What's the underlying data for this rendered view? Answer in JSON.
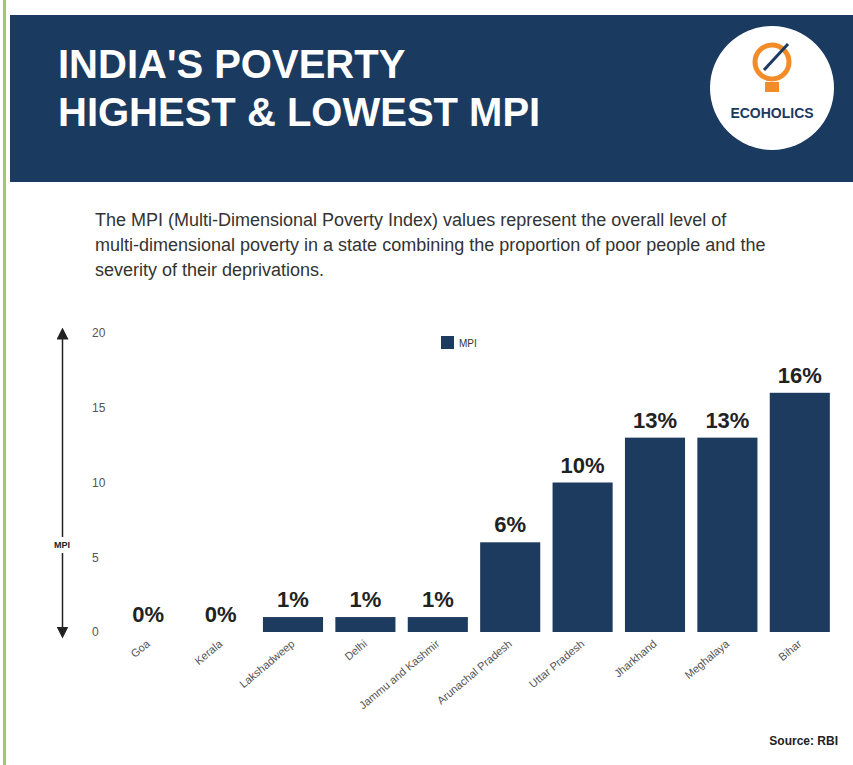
{
  "chart_data": {
    "type": "bar",
    "title": "INDIA'S POVERTY\nHIGHEST & LOWEST MPI",
    "subtitle": "The MPI (Multi-Dimensional Poverty Index) values represent the overall level of multi-dimensional poverty in a state combining the proportion of poor people and the severity of their deprivations.",
    "brand": "ECOHOLICS",
    "source": "Source: RBI",
    "y_label": "MPI",
    "categories": [
      "Goa",
      "Kerala",
      "Lakshadweep",
      "Delhi",
      "Jammu and Kashmir",
      "Arunachal Pradesh",
      "Uttar Pradesh",
      "Jharkhand",
      "Meghalaya",
      "Bihar"
    ],
    "series": [
      {
        "name": "MPI",
        "color": "#1d3a5f",
        "values": [
          0,
          0,
          1,
          1,
          1,
          6,
          10,
          13,
          13,
          16
        ],
        "value_labels": [
          "0%",
          "0%",
          "1%",
          "1%",
          "1%",
          "6%",
          "10%",
          "13%",
          "13%",
          "16%"
        ]
      }
    ],
    "ylim": [
      0,
      20
    ],
    "yticks": [
      0,
      5,
      10,
      15,
      20
    ],
    "grid": false,
    "legend": "top",
    "data_labels": true
  }
}
